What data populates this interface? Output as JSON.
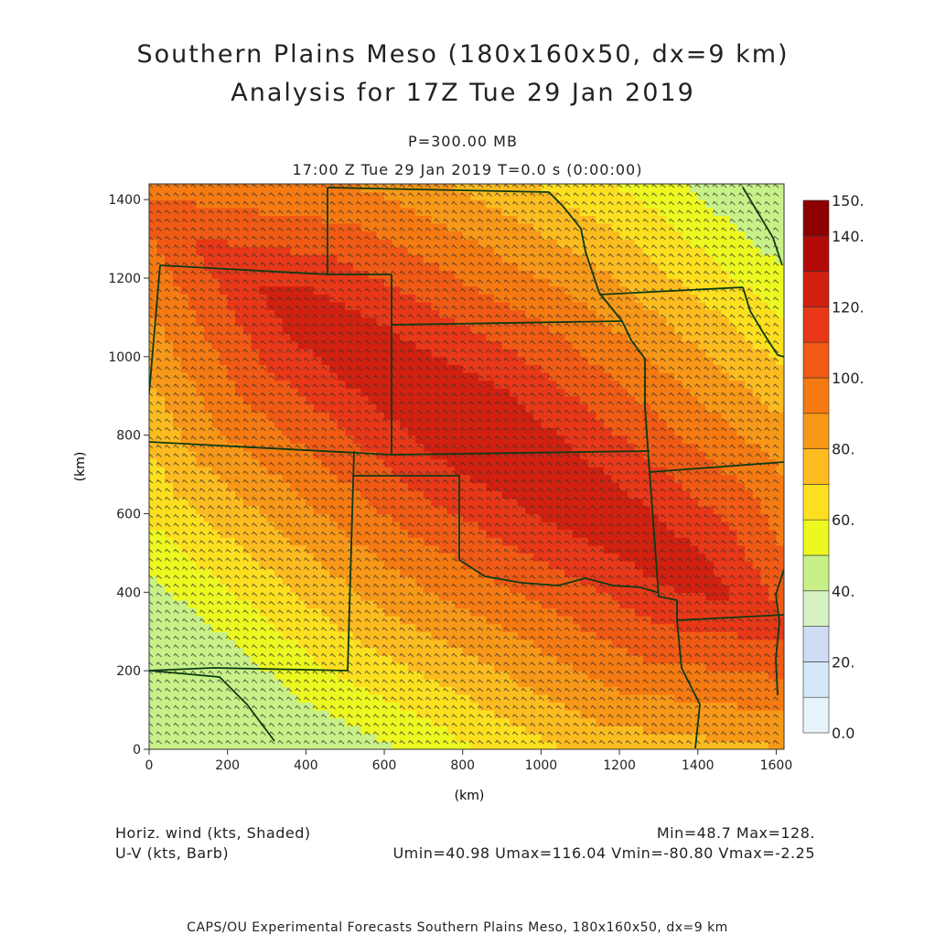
{
  "header": {
    "title_line1": "Southern Plains Meso (180x160x50, dx=9 km)",
    "title_line2": "Analysis for 17Z Tue 29 Jan 2019",
    "level": "P=300.00 MB",
    "valid_time": "17:00 Z Tue 29 Jan 2019    T=0.0 s (0:00:00)"
  },
  "footer": {
    "field1": "Horiz. wind (kts, Shaded)",
    "field2": "U-V (kts, Barb)",
    "minmax": "Min=48.7 Max=128.",
    "uv_range": "Umin=40.98 Umax=116.04 Vmin=-80.80 Vmax=-2.25",
    "credit": "CAPS/OU Experimental Forecasts  Southern Plains Meso, 180x160x50, dx=9 km"
  },
  "chart_data": {
    "type": "heatmap",
    "xlabel": "(km)",
    "ylabel": "(km)",
    "xlim": [
      0,
      1620
    ],
    "ylim": [
      0,
      1440
    ],
    "x_ticks": [
      0,
      200,
      400,
      600,
      800,
      1000,
      1200,
      1400,
      1600
    ],
    "y_ticks": [
      0,
      200,
      400,
      600,
      800,
      1000,
      1200,
      1400
    ],
    "field_min": 48.7,
    "field_max": 128,
    "jet_core": {
      "x_km": [
        1400,
        380
      ],
      "y_km": [
        440,
        1120
      ],
      "max_kts": 128
    },
    "colorbar": {
      "levels": [
        0,
        10,
        20,
        30,
        40,
        50,
        60,
        70,
        80,
        90,
        100,
        110,
        120,
        130,
        140,
        150
      ],
      "labels": [
        "0.0",
        "20.",
        "40.",
        "60.",
        "80.",
        "100.",
        "120.",
        "140.",
        "150."
      ],
      "colors": [
        "#e8f4fc",
        "#d4e8f8",
        "#d0dcf4",
        "#d6f2c2",
        "#c8f088",
        "#ecf820",
        "#fce020",
        "#fcbc20",
        "#f89818",
        "#f57a12",
        "#f05a14",
        "#e83818",
        "#d22010",
        "#b20a08",
        "#8c0000"
      ]
    },
    "barbs": "U-V (kts)",
    "map_color": "#0e3a14",
    "barb_color": "#333333"
  }
}
